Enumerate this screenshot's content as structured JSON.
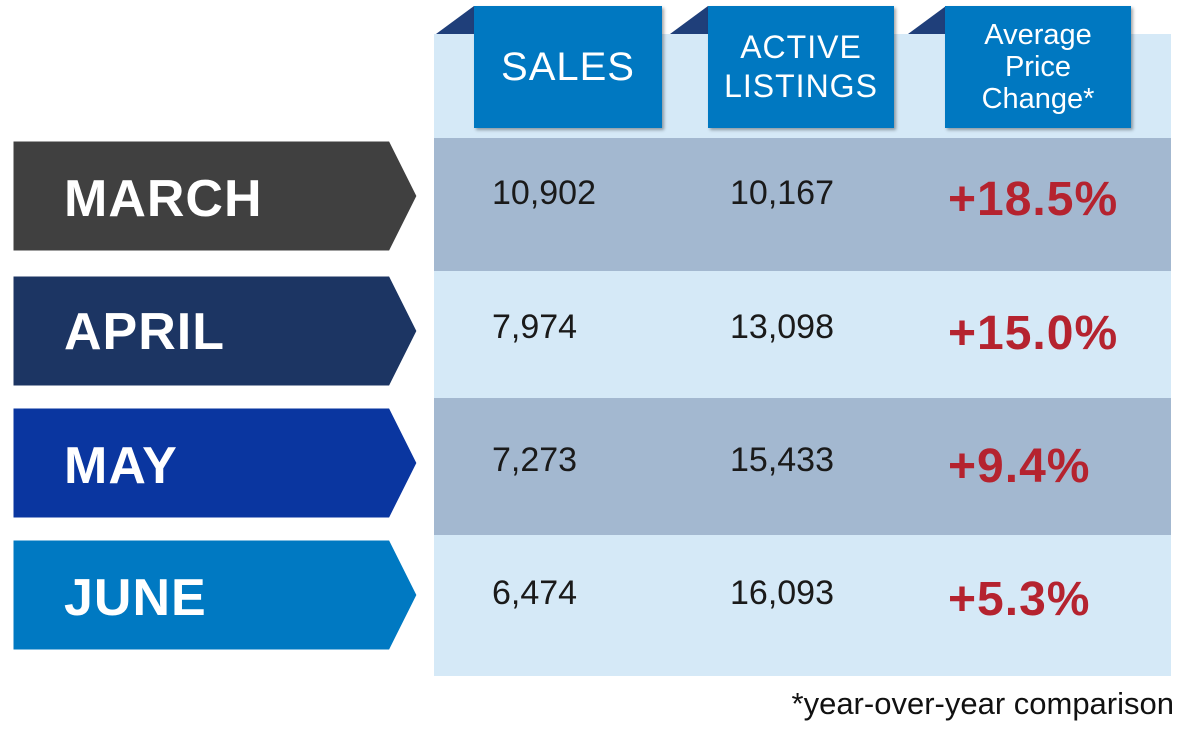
{
  "colors": {
    "panel": "#d5e9f7",
    "band": "#a3b8d0",
    "header": "#0078c1",
    "header_tab": "#1f3f7a",
    "increase": "#b5232f",
    "month_colors": [
      "#404040",
      "#1c3563",
      "#0a36a0",
      "#0079c2"
    ]
  },
  "chart_data": {
    "type": "table",
    "columns": [
      "SALES",
      "ACTIVE LISTINGS",
      "Average Price Change*"
    ],
    "rows": [
      {
        "month": "MARCH",
        "sales": "10,902",
        "active_listings": "10,167",
        "avg_price_change": "+18.5%"
      },
      {
        "month": "APRIL",
        "sales": "7,974",
        "active_listings": "13,098",
        "avg_price_change": "+15.0%"
      },
      {
        "month": "MAY",
        "sales": "7,273",
        "active_listings": "15,433",
        "avg_price_change": "+9.4%"
      },
      {
        "month": "JUNE",
        "sales": "6,474",
        "active_listings": "16,093",
        "avg_price_change": "+5.3%"
      }
    ],
    "footnote": "*year-over-year comparison"
  },
  "headers": {
    "sales": "SALES",
    "active_line1": "ACTIVE",
    "active_line2": "LISTINGS",
    "price_line1": "Average",
    "price_line2": "Price",
    "price_line3": "Change*"
  }
}
